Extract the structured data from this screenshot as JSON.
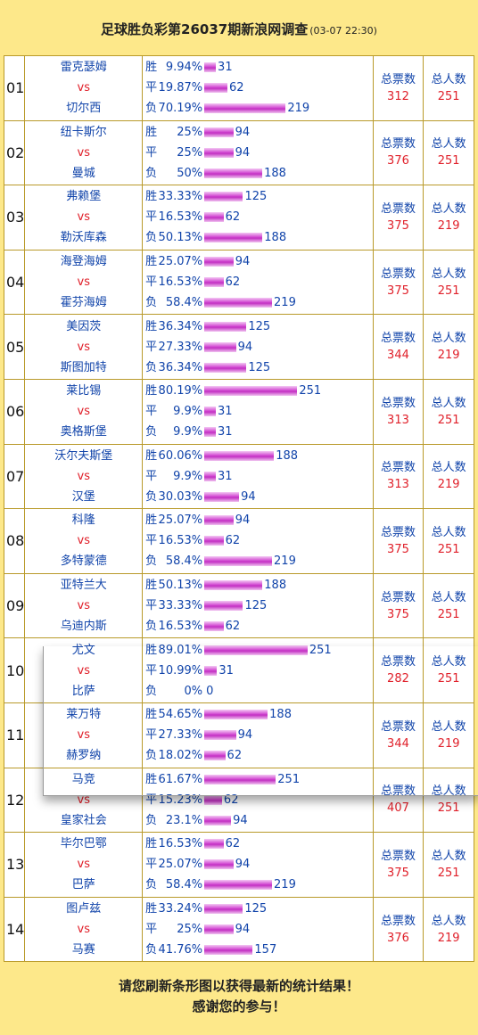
{
  "title": {
    "main": "足球胜负彩第26037期新浪网调查",
    "time": "(03-07 22:30)"
  },
  "labels": {
    "win": "胜",
    "draw": "平",
    "lose": "负",
    "vs": "vs",
    "total_votes": "总票数",
    "total_people": "总人数"
  },
  "matches": [
    {
      "num": "01",
      "home": "雷克瑟姆",
      "away": "切尔西",
      "win": {
        "pct": "9.94%",
        "cnt": "31"
      },
      "draw": {
        "pct": "19.87%",
        "cnt": "62"
      },
      "lose": {
        "pct": "70.19%",
        "cnt": "219"
      },
      "votes": "312",
      "people": "251"
    },
    {
      "num": "02",
      "home": "纽卡斯尔",
      "away": "曼城",
      "win": {
        "pct": "25%",
        "cnt": "94"
      },
      "draw": {
        "pct": "25%",
        "cnt": "94"
      },
      "lose": {
        "pct": "50%",
        "cnt": "188"
      },
      "votes": "376",
      "people": "251"
    },
    {
      "num": "03",
      "home": "弗赖堡",
      "away": "勒沃库森",
      "win": {
        "pct": "33.33%",
        "cnt": "125"
      },
      "draw": {
        "pct": "16.53%",
        "cnt": "62"
      },
      "lose": {
        "pct": "50.13%",
        "cnt": "188"
      },
      "votes": "375",
      "people": "219"
    },
    {
      "num": "04",
      "home": "海登海姆",
      "away": "霍芬海姆",
      "win": {
        "pct": "25.07%",
        "cnt": "94"
      },
      "draw": {
        "pct": "16.53%",
        "cnt": "62"
      },
      "lose": {
        "pct": "58.4%",
        "cnt": "219"
      },
      "votes": "375",
      "people": "251"
    },
    {
      "num": "05",
      "home": "美因茨",
      "away": "斯图加特",
      "win": {
        "pct": "36.34%",
        "cnt": "125"
      },
      "draw": {
        "pct": "27.33%",
        "cnt": "94"
      },
      "lose": {
        "pct": "36.34%",
        "cnt": "125"
      },
      "votes": "344",
      "people": "219"
    },
    {
      "num": "06",
      "home": "莱比锡",
      "away": "奥格斯堡",
      "win": {
        "pct": "80.19%",
        "cnt": "251"
      },
      "draw": {
        "pct": "9.9%",
        "cnt": "31"
      },
      "lose": {
        "pct": "9.9%",
        "cnt": "31"
      },
      "votes": "313",
      "people": "251"
    },
    {
      "num": "07",
      "home": "沃尔夫斯堡",
      "away": "汉堡",
      "win": {
        "pct": "60.06%",
        "cnt": "188"
      },
      "draw": {
        "pct": "9.9%",
        "cnt": "31"
      },
      "lose": {
        "pct": "30.03%",
        "cnt": "94"
      },
      "votes": "313",
      "people": "219"
    },
    {
      "num": "08",
      "home": "科隆",
      "away": "多特蒙德",
      "win": {
        "pct": "25.07%",
        "cnt": "94"
      },
      "draw": {
        "pct": "16.53%",
        "cnt": "62"
      },
      "lose": {
        "pct": "58.4%",
        "cnt": "219"
      },
      "votes": "375",
      "people": "251"
    },
    {
      "num": "09",
      "home": "亚特兰大",
      "away": "乌迪内斯",
      "win": {
        "pct": "50.13%",
        "cnt": "188"
      },
      "draw": {
        "pct": "33.33%",
        "cnt": "125"
      },
      "lose": {
        "pct": "16.53%",
        "cnt": "62"
      },
      "votes": "375",
      "people": "251"
    },
    {
      "num": "10",
      "home": "尤文",
      "away": "比萨",
      "win": {
        "pct": "89.01%",
        "cnt": "251"
      },
      "draw": {
        "pct": "10.99%",
        "cnt": "31"
      },
      "lose": {
        "pct": "0%",
        "cnt": "0"
      },
      "votes": "282",
      "people": "251"
    },
    {
      "num": "11",
      "home": "莱万特",
      "away": "赫罗纳",
      "win": {
        "pct": "54.65%",
        "cnt": "188"
      },
      "draw": {
        "pct": "27.33%",
        "cnt": "94"
      },
      "lose": {
        "pct": "18.02%",
        "cnt": "62"
      },
      "votes": "344",
      "people": "219"
    },
    {
      "num": "12",
      "home": "马竞",
      "away": "皇家社会",
      "win": {
        "pct": "61.67%",
        "cnt": "251"
      },
      "draw": {
        "pct": "15.23%",
        "cnt": "62"
      },
      "lose": {
        "pct": "23.1%",
        "cnt": "94"
      },
      "votes": "407",
      "people": "251"
    },
    {
      "num": "13",
      "home": "毕尔巴鄂",
      "away": "巴萨",
      "win": {
        "pct": "16.53%",
        "cnt": "62"
      },
      "draw": {
        "pct": "25.07%",
        "cnt": "94"
      },
      "lose": {
        "pct": "58.4%",
        "cnt": "219"
      },
      "votes": "375",
      "people": "251"
    },
    {
      "num": "14",
      "home": "图卢兹",
      "away": "马赛",
      "win": {
        "pct": "33.24%",
        "cnt": "125"
      },
      "draw": {
        "pct": "25%",
        "cnt": "94"
      },
      "lose": {
        "pct": "41.76%",
        "cnt": "157"
      },
      "votes": "376",
      "people": "219"
    }
  ],
  "footer": {
    "line1": "请您刷新条形图以获得最新的统计结果！",
    "line2": "感谢您的参与！"
  },
  "colors": {
    "background": "#fde88a",
    "text_blue": "#1144aa",
    "text_red": "#e0202a",
    "bar": "#c22fc2",
    "border": "#b99a2a"
  }
}
